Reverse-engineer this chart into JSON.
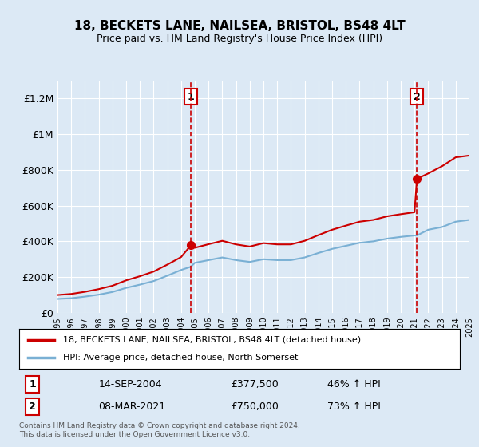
{
  "title": "18, BECKETS LANE, NAILSEA, BRISTOL, BS48 4LT",
  "subtitle": "Price paid vs. HM Land Registry's House Price Index (HPI)",
  "background_color": "#dce9f5",
  "plot_bg_color": "#dce9f5",
  "ylabel_color": "#000000",
  "red_line_color": "#cc0000",
  "blue_line_color": "#7ab0d4",
  "vline_color": "#cc0000",
  "x_start_year": 1995,
  "x_end_year": 2025,
  "ylim": [
    0,
    1300000
  ],
  "yticks": [
    0,
    200000,
    400000,
    600000,
    800000,
    1000000,
    1200000
  ],
  "ytick_labels": [
    "£0",
    "£200K",
    "£400K",
    "£600K",
    "£800K",
    "£1M",
    "£1.2M"
  ],
  "transaction1_year": 2004.71,
  "transaction1_price": 377500,
  "transaction1_label": "1",
  "transaction1_date": "14-SEP-2004",
  "transaction1_pct": "46% ↑ HPI",
  "transaction2_year": 2021.18,
  "transaction2_price": 750000,
  "transaction2_label": "2",
  "transaction2_date": "08-MAR-2021",
  "transaction2_pct": "73% ↑ HPI",
  "legend_label1": "18, BECKETS LANE, NAILSEA, BRISTOL, BS48 4LT (detached house)",
  "legend_label2": "HPI: Average price, detached house, North Somerset",
  "footer1": "Contains HM Land Registry data © Crown copyright and database right 2024.",
  "footer2": "This data is licensed under the Open Government Licence v3.0.",
  "hpi_years": [
    1995,
    1996,
    1997,
    1998,
    1999,
    2000,
    2001,
    2002,
    2003,
    2004,
    2004.71,
    2005,
    2006,
    2007,
    2008,
    2009,
    2010,
    2011,
    2012,
    2013,
    2014,
    2015,
    2016,
    2017,
    2018,
    2019,
    2020,
    2021,
    2021.18,
    2022,
    2023,
    2024,
    2025
  ],
  "hpi_values": [
    78000,
    82000,
    91000,
    102000,
    117000,
    140000,
    158000,
    178000,
    208000,
    240000,
    258000,
    280000,
    295000,
    310000,
    295000,
    285000,
    300000,
    295000,
    295000,
    310000,
    335000,
    358000,
    375000,
    392000,
    400000,
    415000,
    425000,
    433000,
    433000,
    465000,
    480000,
    510000,
    520000
  ],
  "red_years": [
    1995,
    1996,
    1997,
    1998,
    1999,
    2000,
    2001,
    2002,
    2003,
    2004,
    2004.71,
    2005,
    2006,
    2007,
    2008,
    2009,
    2010,
    2011,
    2012,
    2013,
    2014,
    2015,
    2016,
    2017,
    2018,
    2019,
    2020,
    2021,
    2021.18,
    2022,
    2023,
    2024,
    2025
  ],
  "red_values": [
    100000,
    106000,
    118000,
    133000,
    152000,
    182000,
    205000,
    231000,
    270000,
    312000,
    377500,
    364000,
    384000,
    403000,
    383000,
    371000,
    390000,
    383000,
    383000,
    403000,
    435000,
    465000,
    488000,
    510000,
    520000,
    540000,
    552000,
    563000,
    750000,
    780000,
    820000,
    870000,
    880000
  ]
}
